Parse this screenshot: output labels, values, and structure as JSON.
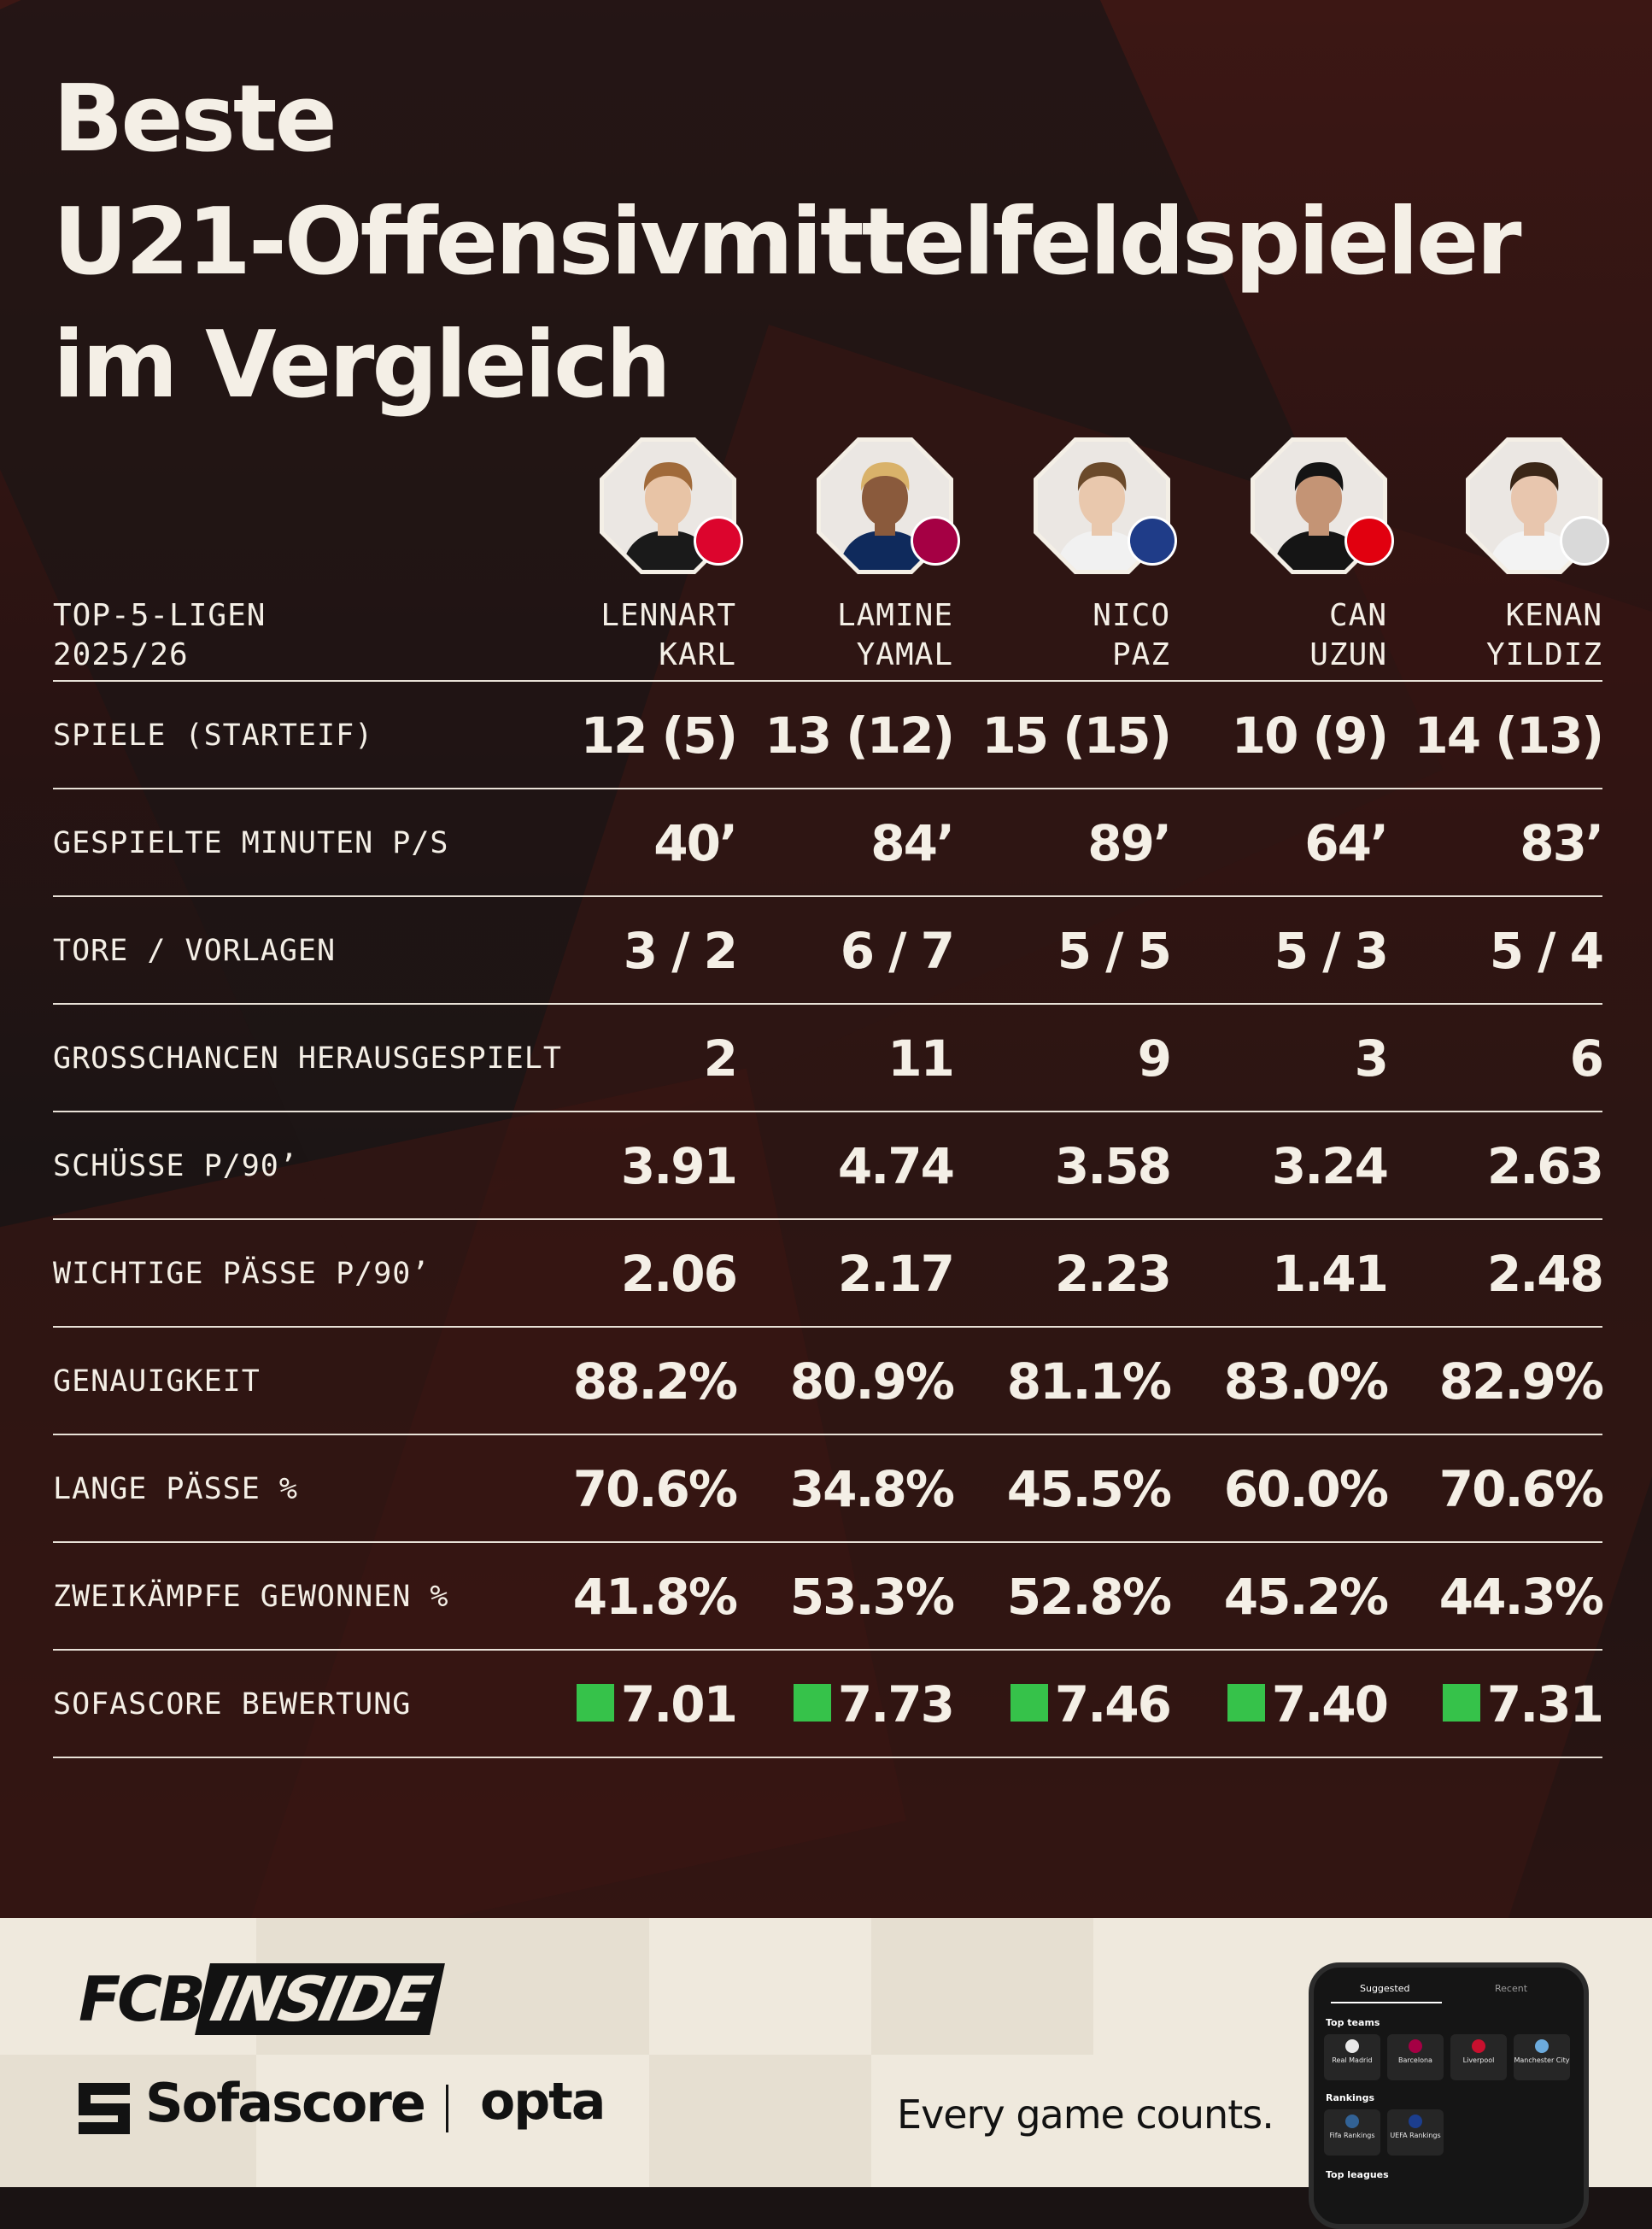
{
  "title": {
    "line1": "Beste",
    "line2": "U21-Offensivmittelfeldspieler",
    "line3": "im Vergleich"
  },
  "header": {
    "label_line1": "TOP-5-LIGEN",
    "label_line2": "2025/26"
  },
  "players": [
    {
      "first": "LENNART",
      "last": "KARL",
      "club_icon": "bayern-munich-badge-icon",
      "club_color": "#dc052d"
    },
    {
      "first": "LAMINE",
      "last": "YAMAL",
      "club_icon": "barcelona-badge-icon",
      "club_color": "#a50044"
    },
    {
      "first": "NICO",
      "last": "PAZ",
      "club_icon": "como-badge-icon",
      "club_color": "#1f3c88"
    },
    {
      "first": "CAN",
      "last": "UZUN",
      "club_icon": "eintracht-frankfurt-badge-icon",
      "club_color": "#e1000f"
    },
    {
      "first": "KENAN",
      "last": "YILDIZ",
      "club_icon": "juventus-badge-icon",
      "club_color": "#d9d9d9"
    }
  ],
  "rows": [
    {
      "label": "SPIELE (STARTEIF)",
      "values": [
        "12 (5)",
        "13 (12)",
        "15 (15)",
        "10 (9)",
        "14 (13)"
      ]
    },
    {
      "label": "GESPIELTE MINUTEN P/S",
      "values": [
        "40’",
        "84’",
        "89’",
        "64’",
        "83’"
      ]
    },
    {
      "label": "TORE / VORLAGEN",
      "values": [
        "3 / 2",
        "6 / 7",
        "5 / 5",
        "5 / 3",
        "5 / 4"
      ]
    },
    {
      "label": "GROSSCHANCEN HERAUSGESPIELT",
      "values": [
        "2",
        "11",
        "9",
        "3",
        "6"
      ]
    },
    {
      "label": "SCHÜSSE P/90’",
      "values": [
        "3.91",
        "4.74",
        "3.58",
        "3.24",
        "2.63"
      ]
    },
    {
      "label": "WICHTIGE PÄSSE P/90’",
      "values": [
        "2.06",
        "2.17",
        "2.23",
        "1.41",
        "2.48"
      ]
    },
    {
      "label": "GENAUIGKEIT",
      "values": [
        "88.2%",
        "80.9%",
        "81.1%",
        "83.0%",
        "82.9%"
      ]
    },
    {
      "label": "LANGE PÄSSE %",
      "values": [
        "70.6%",
        "34.8%",
        "45.5%",
        "60.0%",
        "70.6%"
      ]
    },
    {
      "label": "ZWEIKÄMPFE GEWONNEN %",
      "values": [
        "41.8%",
        "53.3%",
        "52.8%",
        "45.2%",
        "44.3%"
      ]
    },
    {
      "label": "SOFASCORE BEWERTUNG",
      "values": [
        "7.01",
        "7.73",
        "7.46",
        "7.40",
        "7.31"
      ],
      "rating_color": "#36c24a"
    }
  ],
  "footer": {
    "fcb_logo_left": "FCB",
    "fcb_logo_right": "INSIDE",
    "sofascore": "Sofascore",
    "opta": "opta",
    "tagline": "Every game counts.",
    "phone": {
      "tab_suggested": "Suggested",
      "tab_recent": "Recent",
      "section_teams": "Top teams",
      "teams": [
        "Real Madrid",
        "Barcelona",
        "Liverpool",
        "Manchester City"
      ],
      "section_rankings": "Rankings",
      "rankings": [
        "Fifa Rankings",
        "UEFA Rankings"
      ],
      "section_leagues": "Top leagues"
    }
  }
}
